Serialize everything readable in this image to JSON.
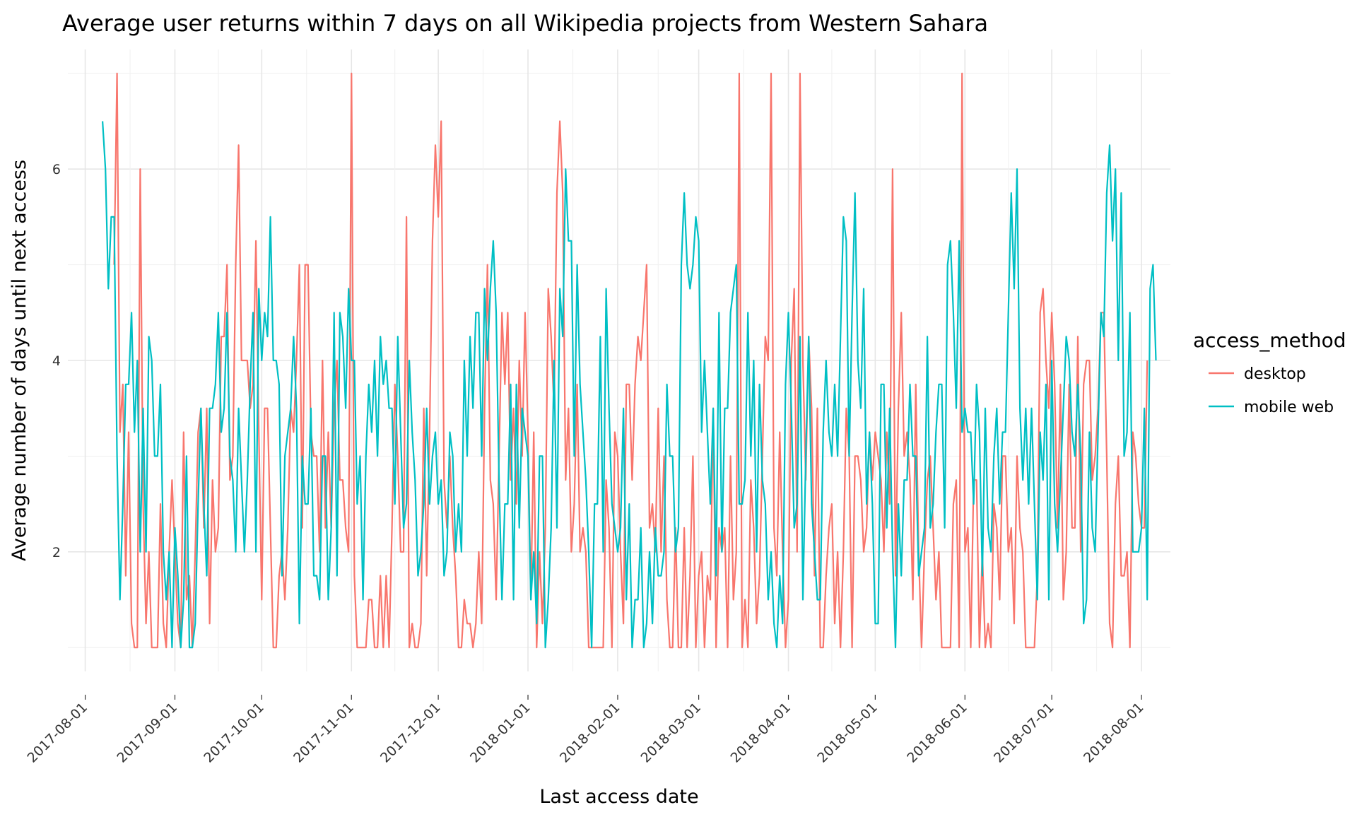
{
  "chart_data": {
    "type": "line",
    "title": "Average user returns within 7 days on all Wikipedia projects from Western Sahara",
    "xlabel": "Last access date",
    "ylabel": "Average number of days until next access",
    "x_ticks": [
      "2017-08-01",
      "2017-09-01",
      "2017-10-01",
      "2017-11-01",
      "2017-12-01",
      "2018-01-01",
      "2018-02-01",
      "2018-03-01",
      "2018-04-01",
      "2018-05-01",
      "2018-06-01",
      "2018-07-01",
      "2018-08-01"
    ],
    "y_ticks": [
      2,
      4,
      6
    ],
    "xlim": [
      "2017-07-26",
      "2018-08-11"
    ],
    "ylim": [
      0.75,
      7.25
    ],
    "grid": true,
    "legend": {
      "title": "access_method",
      "position": "right"
    },
    "series": [
      {
        "name": "desktop",
        "color": "#F8766D",
        "x_start": "2017-08-11",
        "step_days": 7,
        "values": [
          5.0,
          1.0,
          1.0,
          2.0,
          2.0,
          2.0,
          5.0,
          3.0,
          1.0,
          4.0,
          3.0,
          4.0,
          1.0,
          1.0,
          3.0,
          1.0,
          5.5,
          1.0,
          2.0,
          3.0,
          4.0,
          2.0,
          5.0,
          2.0,
          1.0,
          2.0,
          4.0,
          2.0,
          1.0,
          2.0,
          2.0,
          1.0,
          3.0,
          2.0,
          4.0,
          1.0,
          2.0,
          2.0,
          2.0,
          3.0,
          2.0,
          1.0,
          2.0,
          1.0,
          3.0,
          1.0,
          4.0,
          2.0,
          4.0,
          3.0,
          2.0,
          4.0
        ],
        "peaks": [
          {
            "x": "2017-08-12",
            "y": 7.0
          },
          {
            "x": "2017-08-20",
            "y": 6.0
          },
          {
            "x": "2017-09-19",
            "y": 5.0
          },
          {
            "x": "2017-09-29",
            "y": 5.25
          },
          {
            "x": "2017-11-01",
            "y": 7.0
          },
          {
            "x": "2017-11-20",
            "y": 5.5
          },
          {
            "x": "2017-12-02",
            "y": 6.5
          },
          {
            "x": "2017-12-18",
            "y": 5.0
          },
          {
            "x": "2018-01-12",
            "y": 6.5
          },
          {
            "x": "2018-03-15",
            "y": 7.0
          },
          {
            "x": "2018-03-26",
            "y": 7.0
          },
          {
            "x": "2018-04-05",
            "y": 7.0
          },
          {
            "x": "2018-05-07",
            "y": 6.0
          },
          {
            "x": "2018-05-31",
            "y": 7.0
          }
        ]
      },
      {
        "name": "mobile web",
        "color": "#00BFC4",
        "x_start": "2017-08-07",
        "step_days": 7,
        "values": [
          6.5,
          2.5,
          3.5,
          2.0,
          1.5,
          2.5,
          3.5,
          2.0,
          4.5,
          3.0,
          2.5,
          3.0,
          3.5,
          3.0,
          4.0,
          2.5,
          3.5,
          2.0,
          3.0,
          4.0,
          2.5,
          3.0,
          1.5,
          5.25,
          2.0,
          3.5,
          2.5,
          2.0,
          3.0,
          4.75,
          2.5,
          4.5,
          3.0,
          2.0,
          3.5,
          2.5,
          3.0,
          4.5,
          2.5,
          2.0,
          3.0,
          2.5,
          4.5,
          2.5,
          3.0,
          4.75,
          2.5,
          2.5,
          3.0,
          2.0,
          6.0,
          2.0,
          4.0
        ]
      }
    ]
  }
}
